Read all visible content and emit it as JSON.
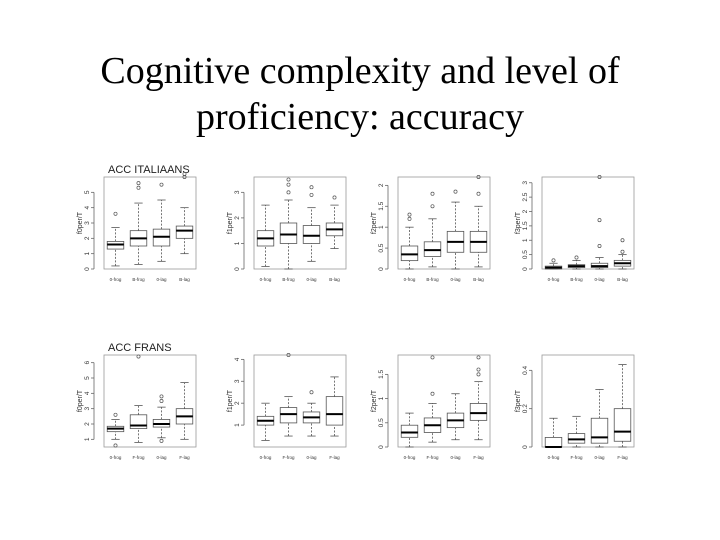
{
  "slide": {
    "title_line1": "Cognitive complexity and level of",
    "title_line2": "proficiency:  accuracy"
  },
  "colors": {
    "box_fill": "#ffffff",
    "stroke": "#555555",
    "median": "#000000"
  },
  "chart_data": [
    {
      "type": "boxplot",
      "row_title": "ACC ITALIAANS",
      "ylabel": "f0per/T",
      "ylim": [
        0,
        6
      ],
      "yticks": [
        0,
        1,
        2,
        3,
        4,
        5
      ],
      "categories": [
        "0-frog",
        "B-frog",
        "0-lag",
        "B-lag"
      ],
      "series": [
        {
          "q1": 1.3,
          "med": 1.6,
          "q3": 1.8,
          "wlo": 0.2,
          "whi": 2.7,
          "out": [
            3.6
          ]
        },
        {
          "q1": 1.5,
          "med": 2.0,
          "q3": 2.5,
          "wlo": 0.3,
          "whi": 4.3,
          "out": [
            5.3,
            5.6
          ]
        },
        {
          "q1": 1.5,
          "med": 2.1,
          "q3": 2.6,
          "wlo": 0.5,
          "whi": 4.5,
          "out": [
            5.5
          ]
        },
        {
          "q1": 2.0,
          "med": 2.5,
          "q3": 2.8,
          "wlo": 1.0,
          "whi": 4.0,
          "out": [
            6.0,
            6.2
          ]
        }
      ]
    },
    {
      "type": "boxplot",
      "row_title": "",
      "ylabel": "f1per/T",
      "ylim": [
        0,
        3.6
      ],
      "yticks": [
        0,
        1,
        2,
        3
      ],
      "categories": [
        "0-frog",
        "B-frog",
        "0-lag",
        "B-lag"
      ],
      "series": [
        {
          "q1": 0.9,
          "med": 1.2,
          "q3": 1.5,
          "wlo": 0.1,
          "whi": 2.5,
          "out": []
        },
        {
          "q1": 1.0,
          "med": 1.35,
          "q3": 1.8,
          "wlo": 0.0,
          "whi": 2.7,
          "out": [
            3.0,
            3.3,
            3.5
          ]
        },
        {
          "q1": 1.0,
          "med": 1.3,
          "q3": 1.7,
          "wlo": 0.3,
          "whi": 2.4,
          "out": [
            2.9,
            3.2
          ]
        },
        {
          "q1": 1.3,
          "med": 1.55,
          "q3": 1.8,
          "wlo": 0.8,
          "whi": 2.5,
          "out": [
            2.8
          ]
        }
      ]
    },
    {
      "type": "boxplot",
      "row_title": "",
      "ylabel": "f2per/T",
      "ylim": [
        0,
        2.2
      ],
      "yticks": [
        0.0,
        0.5,
        1.0,
        1.5,
        2.0
      ],
      "categories": [
        "0-frog",
        "B-frog",
        "0-lag",
        "B-lag"
      ],
      "series": [
        {
          "q1": 0.2,
          "med": 0.35,
          "q3": 0.55,
          "wlo": 0.0,
          "whi": 1.0,
          "out": [
            1.2,
            1.3
          ]
        },
        {
          "q1": 0.3,
          "med": 0.45,
          "q3": 0.65,
          "wlo": 0.05,
          "whi": 1.2,
          "out": [
            1.5,
            1.8
          ]
        },
        {
          "q1": 0.4,
          "med": 0.65,
          "q3": 0.9,
          "wlo": 0.0,
          "whi": 1.6,
          "out": [
            1.85
          ]
        },
        {
          "q1": 0.4,
          "med": 0.65,
          "q3": 0.9,
          "wlo": 0.05,
          "whi": 1.5,
          "out": [
            1.8,
            2.2
          ]
        }
      ]
    },
    {
      "type": "boxplot",
      "row_title": "",
      "ylabel": "f3per/T",
      "ylim": [
        0,
        3.2
      ],
      "yticks": [
        0.0,
        0.5,
        1.0,
        1.5,
        2.0,
        2.5,
        3.0
      ],
      "categories": [
        "0-frog",
        "B-frog",
        "0-lag",
        "B-lag"
      ],
      "series": [
        {
          "q1": 0.0,
          "med": 0.05,
          "q3": 0.1,
          "wlo": 0.0,
          "whi": 0.2,
          "out": [
            0.3
          ]
        },
        {
          "q1": 0.05,
          "med": 0.1,
          "q3": 0.15,
          "wlo": 0.0,
          "whi": 0.3,
          "out": [
            0.4
          ]
        },
        {
          "q1": 0.05,
          "med": 0.1,
          "q3": 0.2,
          "wlo": 0.0,
          "whi": 0.4,
          "out": [
            0.8,
            1.7,
            3.2
          ]
        },
        {
          "q1": 0.1,
          "med": 0.2,
          "q3": 0.3,
          "wlo": 0.0,
          "whi": 0.5,
          "out": [
            1.0,
            0.6
          ]
        }
      ]
    },
    {
      "type": "boxplot",
      "row_title": "ACC FRANS",
      "ylabel": "f0per/T",
      "ylim": [
        0.5,
        6.5
      ],
      "yticks": [
        1,
        2,
        3,
        4,
        5,
        6
      ],
      "categories": [
        "0-frog",
        "F-frog",
        "0-lag",
        "F-lag"
      ],
      "series": [
        {
          "q1": 1.5,
          "med": 1.7,
          "q3": 1.85,
          "wlo": 1.0,
          "whi": 2.3,
          "out": [
            2.6,
            0.6
          ]
        },
        {
          "q1": 1.7,
          "med": 1.9,
          "q3": 2.6,
          "wlo": 0.8,
          "whi": 3.2,
          "out": [
            6.4
          ]
        },
        {
          "q1": 1.8,
          "med": 2.0,
          "q3": 2.3,
          "wlo": 1.1,
          "whi": 3.1,
          "out": [
            3.5,
            3.8,
            0.9
          ]
        },
        {
          "q1": 2.0,
          "med": 2.5,
          "q3": 3.0,
          "wlo": 1.0,
          "whi": 4.7,
          "out": []
        }
      ]
    },
    {
      "type": "boxplot",
      "row_title": "",
      "ylabel": "f1per/T",
      "ylim": [
        0,
        4.2
      ],
      "yticks": [
        1,
        2,
        3,
        4
      ],
      "categories": [
        "0-frog",
        "F-frog",
        "0-lag",
        "F-lag"
      ],
      "series": [
        {
          "q1": 1.0,
          "med": 1.2,
          "q3": 1.4,
          "wlo": 0.3,
          "whi": 2.0,
          "out": []
        },
        {
          "q1": 1.1,
          "med": 1.5,
          "q3": 1.8,
          "wlo": 0.5,
          "whi": 2.3,
          "out": [
            4.2
          ]
        },
        {
          "q1": 1.1,
          "med": 1.35,
          "q3": 1.6,
          "wlo": 0.5,
          "whi": 2.0,
          "out": [
            2.5
          ]
        },
        {
          "q1": 1.0,
          "med": 1.5,
          "q3": 2.3,
          "wlo": 0.5,
          "whi": 3.2,
          "out": []
        }
      ]
    },
    {
      "type": "boxplot",
      "row_title": "",
      "ylabel": "f2per/T",
      "ylim": [
        0,
        1.9
      ],
      "yticks": [
        0.0,
        0.5,
        1.0,
        1.5
      ],
      "categories": [
        "0-frog",
        "F-frog",
        "0-lag",
        "F-lag"
      ],
      "series": [
        {
          "q1": 0.2,
          "med": 0.3,
          "q3": 0.45,
          "wlo": 0.0,
          "whi": 0.7,
          "out": []
        },
        {
          "q1": 0.3,
          "med": 0.45,
          "q3": 0.6,
          "wlo": 0.1,
          "whi": 0.9,
          "out": [
            1.1,
            1.85
          ]
        },
        {
          "q1": 0.4,
          "med": 0.55,
          "q3": 0.7,
          "wlo": 0.15,
          "whi": 1.1,
          "out": []
        },
        {
          "q1": 0.55,
          "med": 0.7,
          "q3": 0.9,
          "wlo": 0.15,
          "whi": 1.35,
          "out": [
            1.5,
            1.6,
            1.85
          ]
        }
      ]
    },
    {
      "type": "boxplot",
      "row_title": "",
      "ylabel": "f3per/T",
      "ylim": [
        0,
        0.48
      ],
      "yticks": [
        0.0,
        0.2,
        0.4
      ],
      "categories": [
        "0-frog",
        "F-frog",
        "0-lag",
        "F-lag"
      ],
      "series": [
        {
          "q1": 0.0,
          "med": 0.0,
          "q3": 0.05,
          "wlo": 0.0,
          "whi": 0.15,
          "out": []
        },
        {
          "q1": 0.02,
          "med": 0.04,
          "q3": 0.07,
          "wlo": 0.0,
          "whi": 0.16,
          "out": []
        },
        {
          "q1": 0.02,
          "med": 0.05,
          "q3": 0.15,
          "wlo": 0.0,
          "whi": 0.3,
          "out": []
        },
        {
          "q1": 0.03,
          "med": 0.08,
          "q3": 0.2,
          "wlo": 0.0,
          "whi": 0.43,
          "out": []
        }
      ]
    }
  ]
}
